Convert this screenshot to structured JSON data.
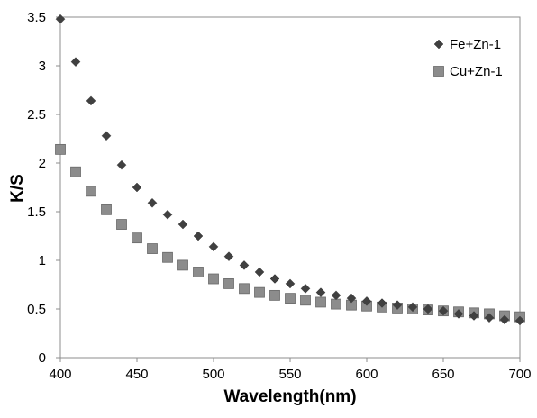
{
  "chart_data": {
    "type": "scatter",
    "title": "",
    "xlabel": "Wavelength(nm)",
    "ylabel": "K/S",
    "xlim": [
      400,
      700
    ],
    "ylim": [
      0,
      3.5
    ],
    "x_ticks": [
      400,
      450,
      500,
      550,
      600,
      650,
      700
    ],
    "y_ticks": [
      "0",
      "0.5",
      "1",
      "1.5",
      "2",
      "2.5",
      "3",
      "3.5"
    ],
    "grid": false,
    "legend_position": "top-right",
    "x": [
      400,
      410,
      420,
      430,
      440,
      450,
      460,
      470,
      480,
      490,
      500,
      510,
      520,
      530,
      540,
      550,
      560,
      570,
      580,
      590,
      600,
      610,
      620,
      630,
      640,
      650,
      660,
      670,
      680,
      690,
      700
    ],
    "series": [
      {
        "name": "Fe+Zn-1",
        "marker": "diamond",
        "color": "#404040",
        "values": [
          3.48,
          3.04,
          2.64,
          2.28,
          1.98,
          1.75,
          1.59,
          1.47,
          1.37,
          1.25,
          1.14,
          1.04,
          0.95,
          0.88,
          0.81,
          0.76,
          0.71,
          0.67,
          0.64,
          0.61,
          0.58,
          0.56,
          0.54,
          0.52,
          0.5,
          0.48,
          0.45,
          0.43,
          0.41,
          0.39,
          0.38
        ]
      },
      {
        "name": "Cu+Zn-1",
        "marker": "square",
        "color": "#8c8c8c",
        "values": [
          2.14,
          1.91,
          1.71,
          1.52,
          1.37,
          1.23,
          1.12,
          1.03,
          0.95,
          0.88,
          0.81,
          0.76,
          0.71,
          0.67,
          0.64,
          0.61,
          0.59,
          0.57,
          0.55,
          0.54,
          0.53,
          0.52,
          0.51,
          0.5,
          0.49,
          0.48,
          0.47,
          0.46,
          0.45,
          0.43,
          0.42
        ]
      }
    ]
  }
}
